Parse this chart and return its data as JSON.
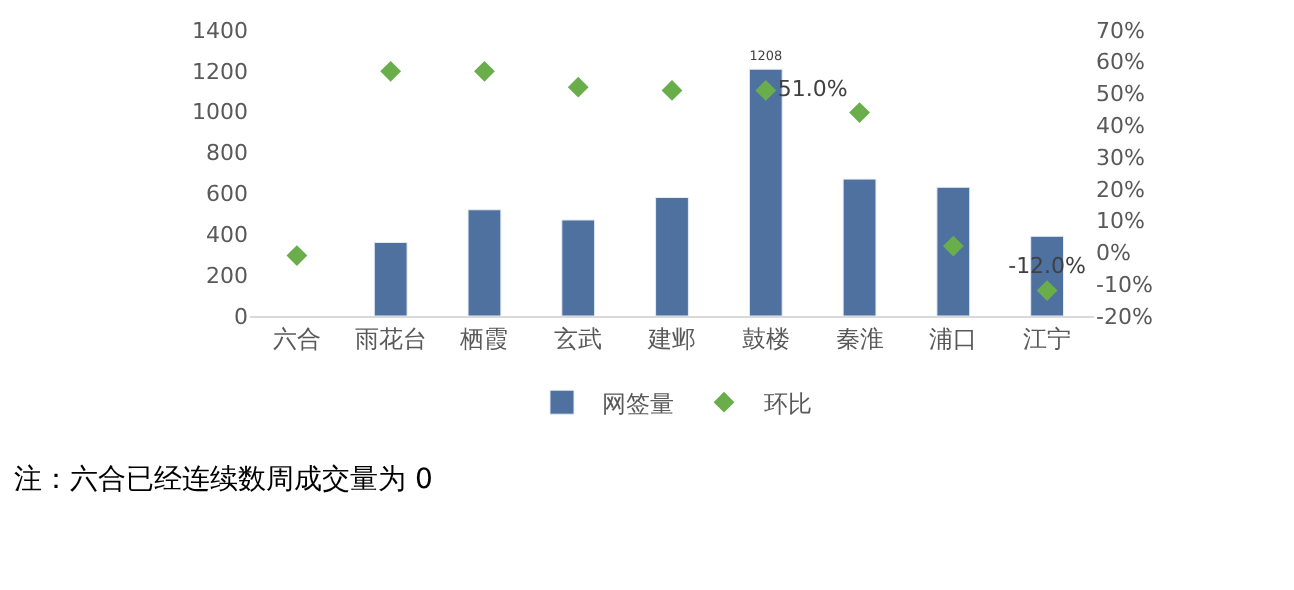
{
  "chart_data": {
    "type": "bar",
    "categories": [
      "六合",
      "雨花台",
      "栖霞",
      "玄武",
      "建邺",
      "鼓楼",
      "秦淮",
      "浦口",
      "江宁"
    ],
    "series": [
      {
        "name": "网签量",
        "color": "#4f71a0",
        "values": [
          null,
          360,
          520,
          470,
          580,
          1208,
          670,
          630,
          390
        ],
        "value_labels": [
          null,
          null,
          null,
          null,
          null,
          "1208",
          null,
          null,
          null
        ]
      },
      {
        "name": "环比",
        "type": "scatter",
        "axis": "y2",
        "color": "#6aae4c",
        "marker": "diamond",
        "values": [
          -1,
          57,
          57,
          52,
          51,
          51.0,
          44,
          2,
          -12.0
        ],
        "value_labels": [
          null,
          null,
          null,
          null,
          null,
          "51.0%",
          null,
          null,
          "-12.0%"
        ]
      }
    ],
    "ylim": [
      0,
      1400
    ],
    "yticks": [
      0,
      200,
      400,
      600,
      800,
      1000,
      1200,
      1400
    ],
    "y2lim": [
      -20,
      70
    ],
    "y2ticks": [
      {
        "value": -20,
        "label": "-20%"
      },
      {
        "value": -10,
        "label": "-10%"
      },
      {
        "value": 0,
        "label": "0%"
      },
      {
        "value": 10,
        "label": "10%"
      },
      {
        "value": 20,
        "label": "20%"
      },
      {
        "value": 30,
        "label": "30%"
      },
      {
        "value": 40,
        "label": "40%"
      },
      {
        "value": 50,
        "label": "50%"
      },
      {
        "value": 60,
        "label": "60%"
      },
      {
        "value": 70,
        "label": "70%"
      }
    ],
    "legend": "bottom",
    "annotations": [
      "注：六合已经连续数周成交量为 0"
    ]
  }
}
